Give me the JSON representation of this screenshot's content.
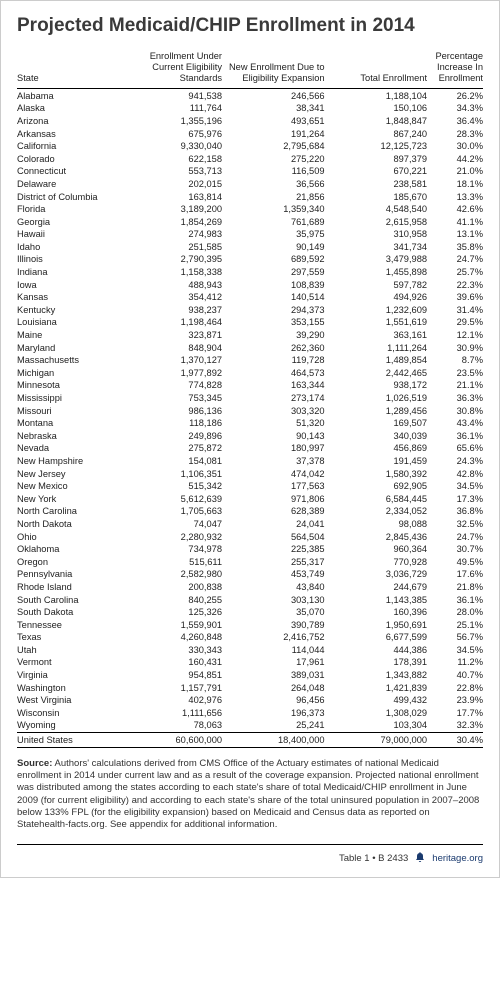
{
  "title": "Projected Medicaid/CHIP Enrollment in 2014",
  "columns": {
    "state": "State",
    "current": "Enrollment Under Current Eligibility Standards",
    "new": "New Enrollment Due to Eligibility Expansion",
    "total": "Total Enrollment",
    "pct": "Percentage Increase In Enrollment"
  },
  "rows": [
    {
      "state": "Alabama",
      "current": "941,538",
      "new": "246,566",
      "total": "1,188,104",
      "pct": "26.2%"
    },
    {
      "state": "Alaska",
      "current": "111,764",
      "new": "38,341",
      "total": "150,106",
      "pct": "34.3%"
    },
    {
      "state": "Arizona",
      "current": "1,355,196",
      "new": "493,651",
      "total": "1,848,847",
      "pct": "36.4%"
    },
    {
      "state": "Arkansas",
      "current": "675,976",
      "new": "191,264",
      "total": "867,240",
      "pct": "28.3%"
    },
    {
      "state": "California",
      "current": "9,330,040",
      "new": "2,795,684",
      "total": "12,125,723",
      "pct": "30.0%"
    },
    {
      "state": "Colorado",
      "current": "622,158",
      "new": "275,220",
      "total": "897,379",
      "pct": "44.2%"
    },
    {
      "state": "Connecticut",
      "current": "553,713",
      "new": "116,509",
      "total": "670,221",
      "pct": "21.0%"
    },
    {
      "state": "Delaware",
      "current": "202,015",
      "new": "36,566",
      "total": "238,581",
      "pct": "18.1%"
    },
    {
      "state": "District of Columbia",
      "current": "163,814",
      "new": "21,856",
      "total": "185,670",
      "pct": "13.3%"
    },
    {
      "state": "Florida",
      "current": "3,189,200",
      "new": "1,359,340",
      "total": "4,548,540",
      "pct": "42.6%"
    },
    {
      "state": "Georgia",
      "current": "1,854,269",
      "new": "761,689",
      "total": "2,615,958",
      "pct": "41.1%"
    },
    {
      "state": "Hawaii",
      "current": "274,983",
      "new": "35,975",
      "total": "310,958",
      "pct": "13.1%"
    },
    {
      "state": "Idaho",
      "current": "251,585",
      "new": "90,149",
      "total": "341,734",
      "pct": "35.8%"
    },
    {
      "state": "Illinois",
      "current": "2,790,395",
      "new": "689,592",
      "total": "3,479,988",
      "pct": "24.7%"
    },
    {
      "state": "Indiana",
      "current": "1,158,338",
      "new": "297,559",
      "total": "1,455,898",
      "pct": "25.7%"
    },
    {
      "state": "Iowa",
      "current": "488,943",
      "new": "108,839",
      "total": "597,782",
      "pct": "22.3%"
    },
    {
      "state": "Kansas",
      "current": "354,412",
      "new": "140,514",
      "total": "494,926",
      "pct": "39.6%"
    },
    {
      "state": "Kentucky",
      "current": "938,237",
      "new": "294,373",
      "total": "1,232,609",
      "pct": "31.4%"
    },
    {
      "state": "Louisiana",
      "current": "1,198,464",
      "new": "353,155",
      "total": "1,551,619",
      "pct": "29.5%"
    },
    {
      "state": "Maine",
      "current": "323,871",
      "new": "39,290",
      "total": "363,161",
      "pct": "12.1%"
    },
    {
      "state": "Maryland",
      "current": "848,904",
      "new": "262,360",
      "total": "1,111,264",
      "pct": "30.9%"
    },
    {
      "state": "Massachusetts",
      "current": "1,370,127",
      "new": "119,728",
      "total": "1,489,854",
      "pct": "8.7%"
    },
    {
      "state": "Michigan",
      "current": "1,977,892",
      "new": "464,573",
      "total": "2,442,465",
      "pct": "23.5%"
    },
    {
      "state": "Minnesota",
      "current": "774,828",
      "new": "163,344",
      "total": "938,172",
      "pct": "21.1%"
    },
    {
      "state": "Mississippi",
      "current": "753,345",
      "new": "273,174",
      "total": "1,026,519",
      "pct": "36.3%"
    },
    {
      "state": "Missouri",
      "current": "986,136",
      "new": "303,320",
      "total": "1,289,456",
      "pct": "30.8%"
    },
    {
      "state": "Montana",
      "current": "118,186",
      "new": "51,320",
      "total": "169,507",
      "pct": "43.4%"
    },
    {
      "state": "Nebraska",
      "current": "249,896",
      "new": "90,143",
      "total": "340,039",
      "pct": "36.1%"
    },
    {
      "state": "Nevada",
      "current": "275,872",
      "new": "180,997",
      "total": "456,869",
      "pct": "65.6%"
    },
    {
      "state": "New Hampshire",
      "current": "154,081",
      "new": "37,378",
      "total": "191,459",
      "pct": "24.3%"
    },
    {
      "state": "New Jersey",
      "current": "1,106,351",
      "new": "474,042",
      "total": "1,580,392",
      "pct": "42.8%"
    },
    {
      "state": "New Mexico",
      "current": "515,342",
      "new": "177,563",
      "total": "692,905",
      "pct": "34.5%"
    },
    {
      "state": "New York",
      "current": "5,612,639",
      "new": "971,806",
      "total": "6,584,445",
      "pct": "17.3%"
    },
    {
      "state": "North Carolina",
      "current": "1,705,663",
      "new": "628,389",
      "total": "2,334,052",
      "pct": "36.8%"
    },
    {
      "state": "North Dakota",
      "current": "74,047",
      "new": "24,041",
      "total": "98,088",
      "pct": "32.5%"
    },
    {
      "state": "Ohio",
      "current": "2,280,932",
      "new": "564,504",
      "total": "2,845,436",
      "pct": "24.7%"
    },
    {
      "state": "Oklahoma",
      "current": "734,978",
      "new": "225,385",
      "total": "960,364",
      "pct": "30.7%"
    },
    {
      "state": "Oregon",
      "current": "515,611",
      "new": "255,317",
      "total": "770,928",
      "pct": "49.5%"
    },
    {
      "state": "Pennsylvania",
      "current": "2,582,980",
      "new": "453,749",
      "total": "3,036,729",
      "pct": "17.6%"
    },
    {
      "state": "Rhode Island",
      "current": "200,838",
      "new": "43,840",
      "total": "244,679",
      "pct": "21.8%"
    },
    {
      "state": "South Carolina",
      "current": "840,255",
      "new": "303,130",
      "total": "1,143,385",
      "pct": "36.1%"
    },
    {
      "state": "South Dakota",
      "current": "125,326",
      "new": "35,070",
      "total": "160,396",
      "pct": "28.0%"
    },
    {
      "state": "Tennessee",
      "current": "1,559,901",
      "new": "390,789",
      "total": "1,950,691",
      "pct": "25.1%"
    },
    {
      "state": "Texas",
      "current": "4,260,848",
      "new": "2,416,752",
      "total": "6,677,599",
      "pct": "56.7%"
    },
    {
      "state": "Utah",
      "current": "330,343",
      "new": "114,044",
      "total": "444,386",
      "pct": "34.5%"
    },
    {
      "state": "Vermont",
      "current": "160,431",
      "new": "17,961",
      "total": "178,391",
      "pct": "11.2%"
    },
    {
      "state": "Virginia",
      "current": "954,851",
      "new": "389,031",
      "total": "1,343,882",
      "pct": "40.7%"
    },
    {
      "state": "Washington",
      "current": "1,157,791",
      "new": "264,048",
      "total": "1,421,839",
      "pct": "22.8%"
    },
    {
      "state": "West Virginia",
      "current": "402,976",
      "new": "96,456",
      "total": "499,432",
      "pct": "23.9%"
    },
    {
      "state": "Wisconsin",
      "current": "1,111,656",
      "new": "196,373",
      "total": "1,308,029",
      "pct": "17.7%"
    },
    {
      "state": "Wyoming",
      "current": "78,063",
      "new": "25,241",
      "total": "103,304",
      "pct": "32.3%"
    }
  ],
  "total_row": {
    "state": "United States",
    "current": "60,600,000",
    "new": "18,400,000",
    "total": "79,000,000",
    "pct": "30.4%"
  },
  "source_label": "Source:",
  "source_text": " Authors' calculations derived from CMS Office of the Actuary estimates of national Medicaid enrollment in 2014 under current law and as a result of the coverage expansion. Projected national enrollment was distributed among the states according to each state's share of total Medicaid/CHIP enrollment in June 2009 (for current eligibility) and according to each state's share of the total uninsured population in 2007–2008 below 133% FPL (for the eligibility expansion) based on Medicaid and Census data as reported on Statehealth-facts.org. See appendix for additional information.",
  "footer": {
    "table_ref": "Table 1 • B 2433",
    "site": "heritage.org"
  },
  "colors": {
    "brand": "#1a3a6e",
    "text": "#222222",
    "title": "#3a3a3a",
    "rule": "#000000"
  }
}
